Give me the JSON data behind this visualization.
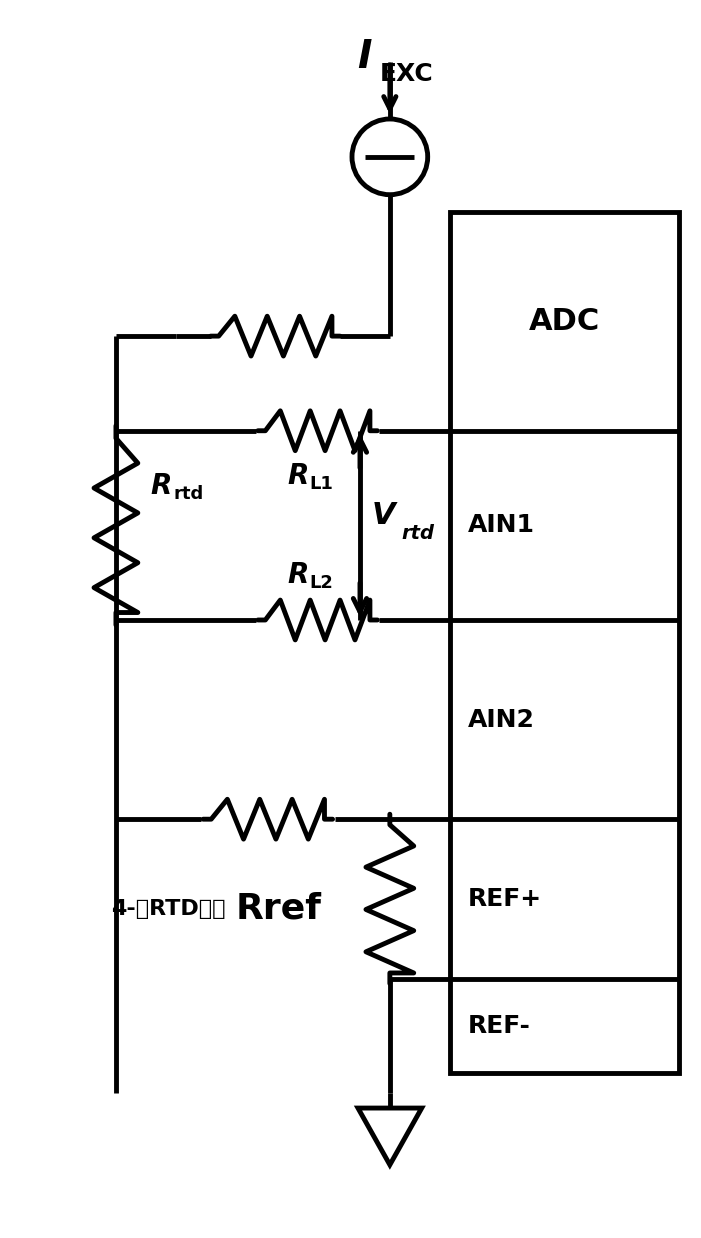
{
  "bg_color": "#ffffff",
  "line_color": "#000000",
  "line_width": 3.5,
  "fig_width": 7.01,
  "fig_height": 12.38,
  "labels": {
    "IEXC_I": "I",
    "IEXC_sub": "EXC",
    "RL1_R": "R",
    "RL1_sub": "L1",
    "RL2_R": "R",
    "RL2_sub": "L2",
    "Rrtd_R": "R",
    "Rrtd_sub": "rtd",
    "Vrtd_V": "V",
    "Vrtd_sub": "rtd",
    "Rref": "Rref",
    "ADC": "ADC",
    "AIN1": "AIN1",
    "AIN2": "AIN2",
    "REFp": "REF+",
    "REFm": "REF-",
    "label_4wire": "4-线RTD测量"
  }
}
